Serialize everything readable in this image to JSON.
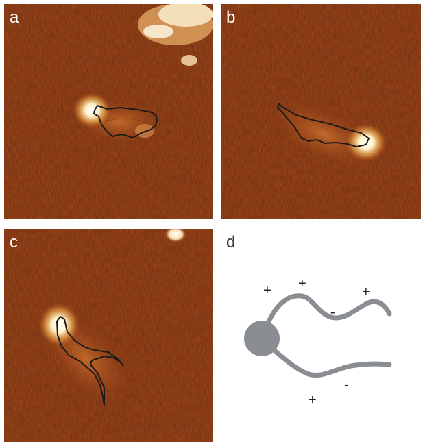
{
  "panels": {
    "a": {
      "label": "a"
    },
    "b": {
      "label": "b"
    },
    "c": {
      "label": "c"
    },
    "d": {
      "label": "d"
    }
  },
  "diagram": {
    "signs": [
      "+",
      "+",
      "+",
      "-",
      "-",
      "+"
    ]
  },
  "colors": {
    "afm_background": "#a4481a",
    "afm_dark": "#8a3a12",
    "afm_highlight": "#fff8e8",
    "trace": "#1a1a1a",
    "schematic_gray": "#8a8e93"
  }
}
